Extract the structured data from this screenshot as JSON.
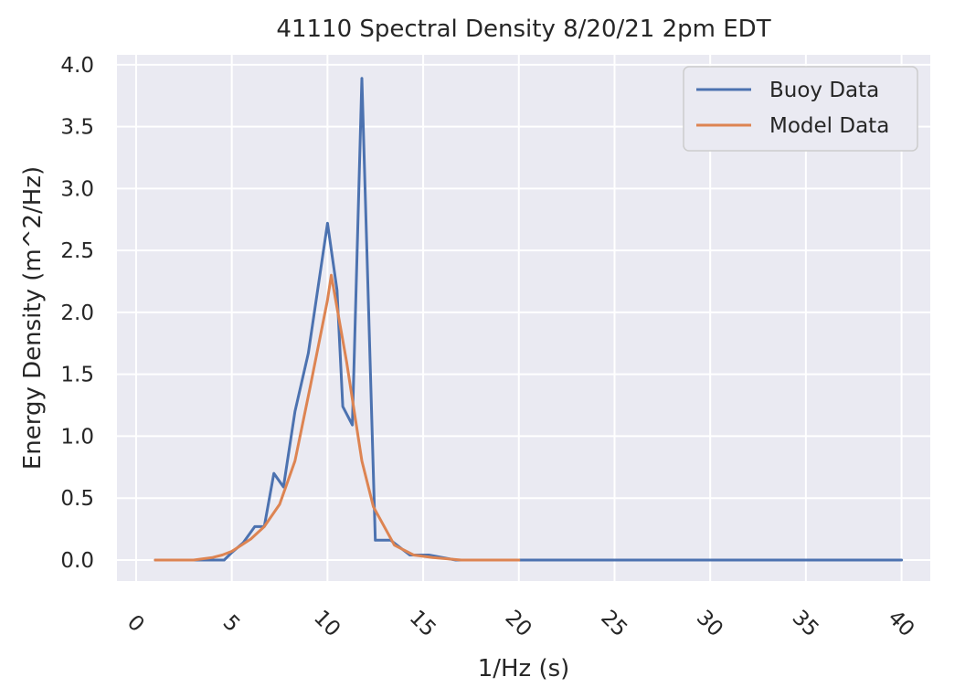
{
  "chart_data": {
    "type": "line",
    "title": "41110 Spectral Density 8/20/21 2pm EDT",
    "xlabel": "1/Hz (s)",
    "ylabel": "Energy Density (m^2/Hz)",
    "xlim": [
      -1,
      41.5
    ],
    "ylim": [
      -0.17,
      4.08
    ],
    "xticks": [
      "0",
      "5",
      "10",
      "15",
      "20",
      "25",
      "30",
      "35",
      "40"
    ],
    "yticks": [
      "0.0",
      "0.5",
      "1.0",
      "1.5",
      "2.0",
      "2.5",
      "3.0",
      "3.5",
      "4.0"
    ],
    "grid": true,
    "legend_position": "top-right",
    "series": [
      {
        "name": "Buoy Data",
        "color": "#4c72b0",
        "x": [
          1.0,
          3.0,
          4.6,
          5.0,
          5.6,
          6.2,
          6.7,
          7.2,
          7.7,
          8.3,
          9.0,
          10.0,
          10.5,
          10.8,
          11.3,
          11.8,
          12.5,
          13.3,
          14.3,
          15.3,
          16.7,
          18.0,
          20.0,
          40.0
        ],
        "y": [
          0.0,
          0.0,
          0.0,
          0.06,
          0.14,
          0.27,
          0.27,
          0.7,
          0.59,
          1.2,
          1.67,
          2.72,
          2.18,
          1.24,
          1.09,
          3.89,
          0.16,
          0.16,
          0.04,
          0.04,
          0.0,
          0.0,
          0.0,
          0.0
        ]
      },
      {
        "name": "Model Data",
        "color": "#dd8452",
        "x": [
          1.0,
          2.0,
          3.0,
          4.0,
          4.5,
          5.0,
          5.5,
          6.0,
          6.7,
          7.5,
          8.3,
          9.1,
          10.0,
          10.2,
          11.0,
          11.8,
          12.4,
          13.5,
          14.5,
          15.5,
          17.0,
          18.5,
          20.0
        ],
        "y": [
          0.0,
          0.0,
          0.0,
          0.02,
          0.04,
          0.07,
          0.12,
          0.17,
          0.27,
          0.45,
          0.8,
          1.4,
          2.1,
          2.3,
          1.6,
          0.8,
          0.43,
          0.12,
          0.04,
          0.02,
          0.0,
          0.0,
          0.0
        ]
      }
    ]
  }
}
